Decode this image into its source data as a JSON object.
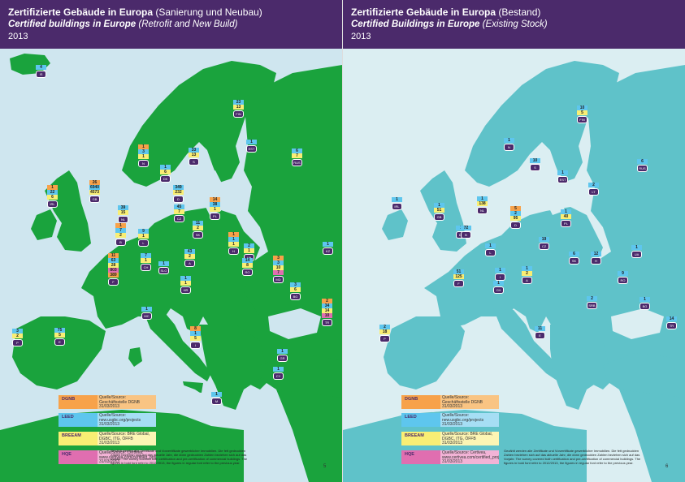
{
  "colors": {
    "header_bg": "#4b2a6b",
    "sea_left": "#cfe6ef",
    "land_left": "#1aa33d",
    "sea_right": "#dbeef2",
    "land_right": "#5fc2c9",
    "dgnb": "#f7a24a",
    "leed": "#5ec6ee",
    "breeam": "#f9ee74",
    "hqe": "#e06eb0"
  },
  "left": {
    "title_bold": "Zertifizierte Gebäude in Europa",
    "title_normal": "(Sanierung und Neubau)",
    "subtitle_bold": "Certified buildings in Europe",
    "subtitle_normal": "(Retrofit and New Build)",
    "year": "2013",
    "page_number": "5",
    "markers": [
      {
        "id": "iceland",
        "values": [
          "4"
        ],
        "code": "IS"
      },
      {
        "id": "norway",
        "values": [
          "1",
          "3",
          "1"
        ],
        "code": "N"
      },
      {
        "id": "sweden",
        "values": [
          "33",
          "13"
        ],
        "code": "S"
      },
      {
        "id": "finland",
        "values": [
          "23",
          "13"
        ],
        "code": "FIN"
      },
      {
        "id": "estonia",
        "values": [
          "1"
        ],
        "code": "EST"
      },
      {
        "id": "russia",
        "values": [
          "6",
          "7"
        ],
        "code": "RUS"
      },
      {
        "id": "denmark",
        "values": [
          "1",
          "6"
        ],
        "code": "DK"
      },
      {
        "id": "germany",
        "values": [
          "349",
          "232"
        ],
        "code": "D"
      },
      {
        "id": "ireland",
        "values": [
          "1",
          "22",
          "6"
        ],
        "code": "IRL"
      },
      {
        "id": "uk",
        "values": [
          "26",
          "6940",
          "4573"
        ],
        "code": "GB"
      },
      {
        "id": "netherlands",
        "values": [
          "39",
          "15"
        ],
        "code": "NL"
      },
      {
        "id": "poland",
        "values": [
          "14",
          "38",
          "1"
        ],
        "code": "PL"
      },
      {
        "id": "belgium",
        "values": [
          "1",
          "7",
          "2"
        ],
        "code": "B"
      },
      {
        "id": "czech",
        "values": [
          "45",
          "7"
        ],
        "code": "CZ"
      },
      {
        "id": "luxembourg",
        "values": [
          "9",
          "1"
        ],
        "code": "L"
      },
      {
        "id": "slovakia",
        "values": [
          "11",
          "2"
        ],
        "code": "SK"
      },
      {
        "id": "france",
        "values": [
          "11",
          "63",
          "28",
          "803",
          "389"
        ],
        "code": "F"
      },
      {
        "id": "switzerland",
        "values": [
          "7",
          "1"
        ],
        "code": "CH"
      },
      {
        "id": "austria",
        "values": [
          "43",
          "2"
        ],
        "code": "A"
      },
      {
        "id": "hungary",
        "values": [
          "1",
          "1",
          "1"
        ],
        "code": "H"
      },
      {
        "id": "ukraine",
        "values": [
          "2",
          "1"
        ],
        "code": "UA"
      },
      {
        "id": "romania",
        "values": [
          "14",
          "8"
        ],
        "code": "RO"
      },
      {
        "id": "moldova",
        "values": [
          "3",
          "3",
          "10",
          "7"
        ],
        "code": "MD"
      },
      {
        "id": "slovenia",
        "values": [
          "1"
        ],
        "code": "SLO"
      },
      {
        "id": "croatia",
        "values": [
          "1",
          "1"
        ],
        "code": "HR"
      },
      {
        "id": "bulgaria",
        "values": [
          "3",
          "6"
        ],
        "code": "BG"
      },
      {
        "id": "kazakhstan",
        "values": [
          "1"
        ],
        "code": "KZ"
      },
      {
        "id": "turkey",
        "values": [
          "2",
          "34",
          "14",
          "10"
        ],
        "code": "TR"
      },
      {
        "id": "portugal",
        "values": [
          "3",
          "2"
        ],
        "code": "P"
      },
      {
        "id": "spain",
        "values": [
          "75",
          "5"
        ],
        "code": "E"
      },
      {
        "id": "monaco",
        "values": [
          "1"
        ],
        "code": "MC"
      },
      {
        "id": "italy",
        "values": [
          "8",
          "1",
          "5"
        ],
        "code": "I"
      },
      {
        "id": "greece",
        "values": [
          "1"
        ],
        "code": "GR"
      },
      {
        "id": "cyprus",
        "values": [
          "1"
        ],
        "code": "CY"
      },
      {
        "id": "malta",
        "values": [
          "1"
        ],
        "code": "M"
      }
    ]
  },
  "right": {
    "title_bold": "Zertifizierte Gebäude in Europa",
    "title_normal": "(Bestand)",
    "subtitle_bold": "Certified Buildings in Europe",
    "subtitle_normal": "(Existing Stock)",
    "year": "2013",
    "page_number": "6",
    "markers": [
      {
        "id": "finland",
        "values": [
          "10",
          "5"
        ],
        "code": "FIN"
      },
      {
        "id": "norway",
        "values": [
          "1"
        ],
        "code": "N"
      },
      {
        "id": "sweden",
        "values": [
          "10"
        ],
        "code": "S"
      },
      {
        "id": "russia",
        "values": [
          "6"
        ],
        "code": "RUS"
      },
      {
        "id": "estonia",
        "values": [
          "1"
        ],
        "code": "EST"
      },
      {
        "id": "lithuania",
        "values": [
          "2"
        ],
        "code": "LT"
      },
      {
        "id": "ireland",
        "values": [
          "1"
        ],
        "code": "IRL"
      },
      {
        "id": "uk",
        "values": [
          "1",
          "51"
        ],
        "code": "GB"
      },
      {
        "id": "netherlands",
        "values": [
          "1",
          "138"
        ],
        "code": "NL"
      },
      {
        "id": "denmark",
        "values": [
          "1"
        ],
        "code": "DK"
      },
      {
        "id": "germany",
        "values": [
          "5",
          "2",
          "95"
        ],
        "code": "D"
      },
      {
        "id": "poland",
        "values": [
          "1",
          "40"
        ],
        "code": "PL"
      },
      {
        "id": "belgium",
        "values": [
          "72"
        ],
        "code": "B"
      },
      {
        "id": "luxembourg",
        "values": [
          "1"
        ],
        "code": "L"
      },
      {
        "id": "czech",
        "values": [
          "19"
        ],
        "code": "CZ"
      },
      {
        "id": "austria",
        "values": [
          "1",
          "2"
        ],
        "code": "A"
      },
      {
        "id": "slovakia",
        "values": [
          "6"
        ],
        "code": "SK"
      },
      {
        "id": "hungary",
        "values": [
          "12"
        ],
        "code": "H"
      },
      {
        "id": "ukraine",
        "values": [
          "1"
        ],
        "code": "UA"
      },
      {
        "id": "france",
        "values": [
          "51",
          "125"
        ],
        "code": "F"
      },
      {
        "id": "switzerland",
        "values": [
          "1"
        ],
        "code": "CH"
      },
      {
        "id": "italy",
        "values": [
          "1"
        ],
        "code": "I"
      },
      {
        "id": "romania",
        "values": [
          "9"
        ],
        "code": "RO"
      },
      {
        "id": "serbia",
        "values": [
          "2"
        ],
        "code": "SRB"
      },
      {
        "id": "bulgaria",
        "values": [
          "1"
        ],
        "code": "BG"
      },
      {
        "id": "portugal",
        "values": [
          "2",
          "18"
        ],
        "code": "P"
      },
      {
        "id": "spain",
        "values": [
          "11"
        ],
        "code": "E"
      },
      {
        "id": "turkey",
        "values": [
          "14"
        ],
        "code": "TR"
      }
    ]
  },
  "legend": [
    {
      "label": "DGNB",
      "source": "Quelle/Source: Geschäftsstelle DGNB 31/03/2013"
    },
    {
      "label": "LEED",
      "source": "Quelle/Source: new.usgbc.org/projects 31/03/2013"
    },
    {
      "label": "BREEAM",
      "source": "Quelle/Source: BRE Global, DGBC, ITG, ÖFFB 31/03/2013"
    },
    {
      "label": "HQE",
      "source": "Quelle/Source: Certivea, www.certivea.com/certified_projects, 31/03/2013"
    }
  ],
  "note": "Gezählt werden alle Zertifikate und Vorzertifikate gewerblicher Immobilien. Die fett gedruckten Zahlen beziehen sich auf das aktuelle Jahr, die dünn gedruckten Zahlen beziehen sich auf das Vorjahr. The survey covered both certification and pre-certification of commercial buildings. The figures in bold font refer to 2012/2013, the figures in regular font refer to the previous year."
}
